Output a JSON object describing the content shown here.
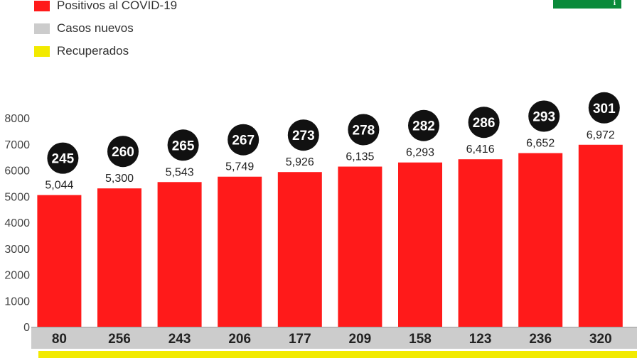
{
  "legend": [
    {
      "label": "Positivos al COVID-19",
      "color": "#ff1a1a"
    },
    {
      "label": "Casos nuevos",
      "color": "#cccccc"
    },
    {
      "label": "Recuperados",
      "color": "#f2ea00"
    }
  ],
  "logo": {
    "color": "#0a8a3a",
    "text": "ℹ"
  },
  "chart_data": {
    "type": "bar",
    "ylim": [
      0,
      8000
    ],
    "yticks": [
      0,
      1000,
      2000,
      3000,
      4000,
      5000,
      6000,
      7000,
      8000
    ],
    "grid": false,
    "colors": {
      "positives": "#ff1a1a",
      "new_cases": "#cccccc",
      "recovered": "#f2ea00",
      "deaths_badge": "#111111"
    },
    "series": [
      {
        "values": [
          5044,
          5300,
          5543,
          5749,
          5926,
          6135,
          6293,
          6416,
          6652,
          6972
        ]
      }
    ],
    "value_labels": [
      "5,044",
      "5,300",
      "5,543",
      "5,749",
      "5,926",
      "6,135",
      "6,293",
      "6,416",
      "6,652",
      "6,972"
    ],
    "badges": [
      "245",
      "260",
      "265",
      "267",
      "273",
      "278",
      "282",
      "286",
      "293",
      "301"
    ],
    "new_cases": [
      "80",
      "256",
      "243",
      "206",
      "177",
      "209",
      "158",
      "123",
      "236",
      "320"
    ]
  }
}
